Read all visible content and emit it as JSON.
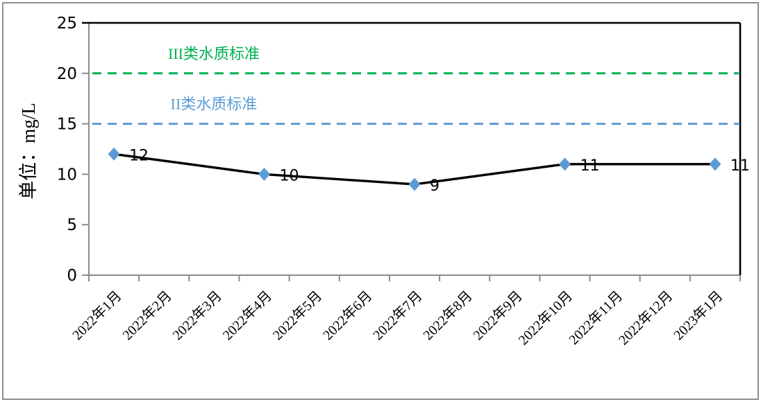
{
  "chart_data": {
    "type": "line",
    "title": "",
    "ylabel": "单位：mg/L",
    "ylim": [
      0,
      25
    ],
    "yticks": [
      0,
      5,
      10,
      15,
      20,
      25
    ],
    "grid": false,
    "legend": "none",
    "categories": [
      "2022年1月",
      "2022年2月",
      "2022年3月",
      "2022年4月",
      "2022年5月",
      "2022年6月",
      "2022年7月",
      "2022年8月",
      "2022年9月",
      "2022年10月",
      "2022年11月",
      "2022年12月",
      "2023年1月"
    ],
    "series": [
      {
        "values": [
          12,
          null,
          null,
          10,
          null,
          null,
          9,
          null,
          null,
          11,
          null,
          null,
          11
        ],
        "data_labels": [
          "12",
          "",
          "",
          "10",
          "",
          "",
          "9",
          "",
          "",
          "11",
          "",
          "",
          "11"
        ],
        "line_color": "#000000",
        "marker": "diamond",
        "marker_color": "#5B9BD5"
      }
    ],
    "reference_lines": [
      {
        "label": "III类水质标准",
        "value": 20,
        "color": "#00B050",
        "style": "dashed"
      },
      {
        "label": "II类水质标准",
        "value": 15,
        "color": "#5B9BD5",
        "style": "dashed"
      }
    ],
    "colors": {
      "axis": "#8c8c8c",
      "plot_border": "#000000",
      "tick_label": "#000000",
      "data_label": "#000000"
    }
  }
}
